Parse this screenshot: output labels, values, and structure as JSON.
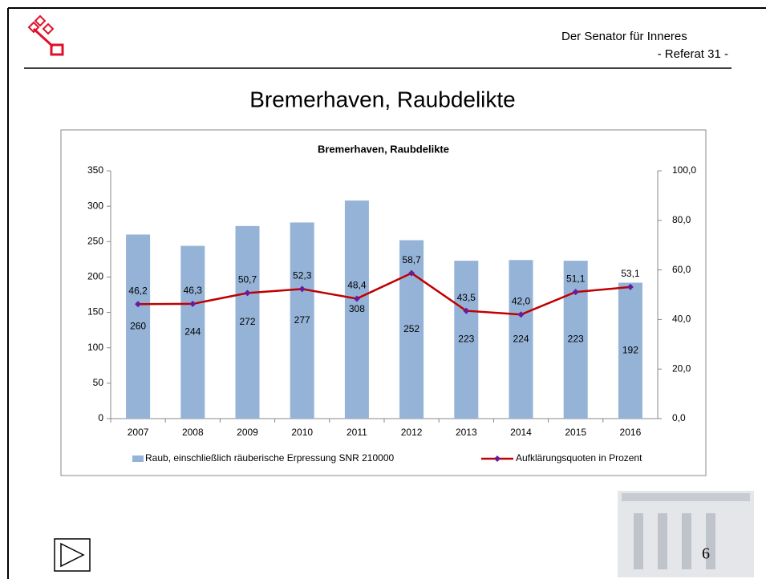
{
  "slide": {
    "org": "Der Senator für Inneres",
    "dept": "- Referat 31 -",
    "title": "Bremerhaven, Raubdelikte",
    "page": "6"
  },
  "chart_data": {
    "type": "bar",
    "title": "Bremerhaven, Raubdelikte",
    "categories": [
      "2007",
      "2008",
      "2009",
      "2010",
      "2011",
      "2012",
      "2013",
      "2014",
      "2015",
      "2016"
    ],
    "series": [
      {
        "name": "Raub, einschließlich räuberische Erpressung SNR 210000",
        "type": "bar",
        "color": "#95b3d7",
        "values": [
          260,
          244,
          272,
          277,
          308,
          252,
          223,
          224,
          223,
          192
        ]
      },
      {
        "name": "Aufklärungsquoten in Prozent",
        "type": "line",
        "axis": "y2",
        "color": "#c00000",
        "marker_color": "#6a1b9a",
        "values": [
          46.2,
          46.3,
          50.7,
          52.3,
          48.4,
          58.7,
          43.5,
          42.0,
          51.1,
          53.1
        ],
        "value_labels": [
          "46,2",
          "46,3",
          "50,7",
          "52,3",
          "48,4",
          "58,7",
          "43,5",
          "42,0",
          "51,1",
          "53,1"
        ]
      }
    ],
    "ylim": [
      0,
      350
    ],
    "yticks": [
      0,
      50,
      100,
      150,
      200,
      250,
      300,
      350
    ],
    "y2lim": [
      0,
      100
    ],
    "y2ticks": [
      {
        "value": 0,
        "label": "0,0"
      },
      {
        "value": 20,
        "label": "20,0"
      },
      {
        "value": 40,
        "label": "40,0"
      },
      {
        "value": 60,
        "label": "60,0"
      },
      {
        "value": 80,
        "label": "80,0"
      },
      {
        "value": 100,
        "label": "100,0"
      }
    ],
    "legend": "bottom"
  }
}
